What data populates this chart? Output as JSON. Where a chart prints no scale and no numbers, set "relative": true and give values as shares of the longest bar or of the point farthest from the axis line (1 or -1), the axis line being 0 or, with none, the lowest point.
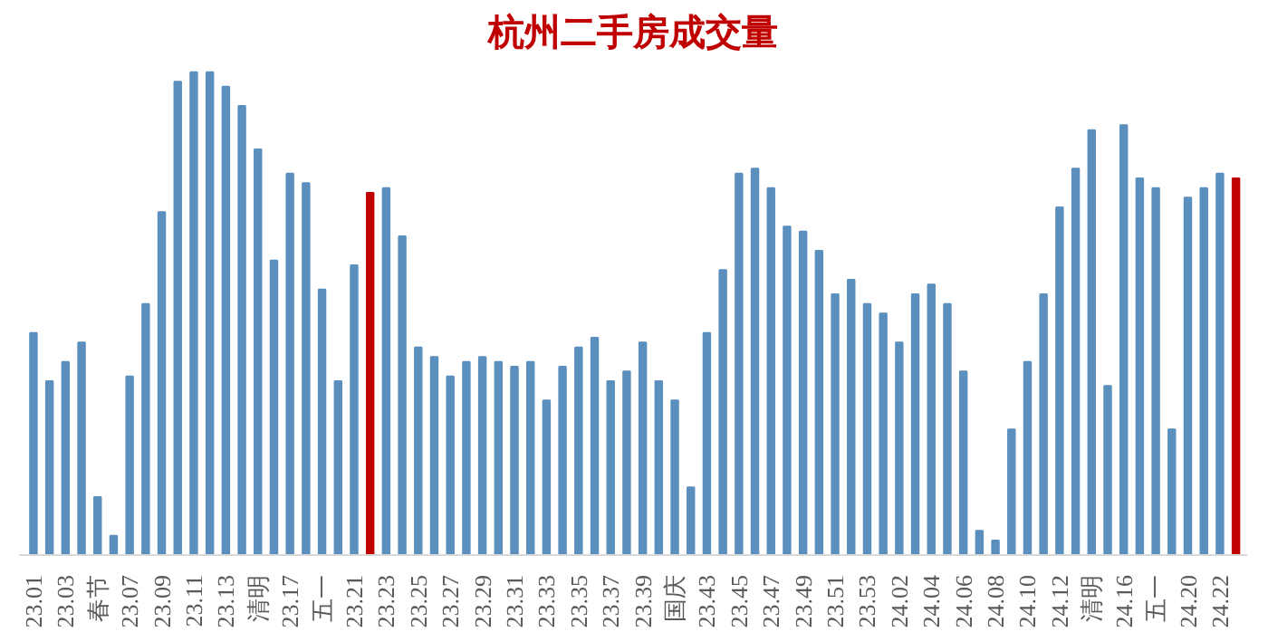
{
  "chart_data": {
    "type": "bar",
    "title": "杭州二手房成交量",
    "relative": true,
    "categories": [
      "23.01",
      null,
      "23.03",
      null,
      "春节",
      null,
      "23.07",
      null,
      "23.09",
      null,
      "23.11",
      null,
      "23.13",
      null,
      "清明",
      null,
      "23.17",
      null,
      "五一",
      null,
      "23.21",
      null,
      "23.23",
      null,
      "23.25",
      null,
      "23.27",
      null,
      "23.29",
      null,
      "23.31",
      null,
      "23.33",
      null,
      "23.35",
      null,
      "23.37",
      null,
      "23.39",
      null,
      "国庆",
      null,
      "23.43",
      null,
      "23.45",
      null,
      "23.47",
      null,
      "23.49",
      null,
      "23.51",
      null,
      "23.53",
      null,
      "24.02",
      null,
      "24.04",
      null,
      "24.06",
      null,
      "24.08",
      null,
      "24.10",
      null,
      "24.12",
      null,
      "清明",
      null,
      "24.16",
      null,
      "五一",
      null,
      "24.20",
      null,
      "24.22",
      null
    ],
    "values": [
      0.46,
      0.36,
      0.4,
      0.44,
      0.12,
      0.04,
      0.37,
      0.52,
      0.71,
      0.98,
      1,
      1,
      0.97,
      0.93,
      0.84,
      0.61,
      0.79,
      0.77,
      0.55,
      0.36,
      0.6,
      0.75,
      0.76,
      0.66,
      0.43,
      0.41,
      0.37,
      0.4,
      0.41,
      0.4,
      0.39,
      0.4,
      0.32,
      0.39,
      0.43,
      0.45,
      0.36,
      0.38,
      0.44,
      0.36,
      0.32,
      0.14,
      0.46,
      0.59,
      0.79,
      0.8,
      0.76,
      0.68,
      0.67,
      0.63,
      0.54,
      0.57,
      0.52,
      0.5,
      0.44,
      0.54,
      0.56,
      0.52,
      0.38,
      0.05,
      0.03,
      0.26,
      0.4,
      0.54,
      0.72,
      0.8,
      0.88,
      0.35,
      0.89,
      0.78,
      0.76,
      0.26,
      0.74,
      0.76,
      0.79,
      0.78
    ],
    "colors": [
      "#5b8fbd",
      "#5b8fbd",
      "#5b8fbd",
      "#5b8fbd",
      "#5b8fbd",
      "#5b8fbd",
      "#5b8fbd",
      "#5b8fbd",
      "#5b8fbd",
      "#5b8fbd",
      "#5b8fbd",
      "#5b8fbd",
      "#5b8fbd",
      "#5b8fbd",
      "#5b8fbd",
      "#5b8fbd",
      "#5b8fbd",
      "#5b8fbd",
      "#5b8fbd",
      "#5b8fbd",
      "#5b8fbd",
      "#c00000",
      "#5b8fbd",
      "#5b8fbd",
      "#5b8fbd",
      "#5b8fbd",
      "#5b8fbd",
      "#5b8fbd",
      "#5b8fbd",
      "#5b8fbd",
      "#5b8fbd",
      "#5b8fbd",
      "#5b8fbd",
      "#5b8fbd",
      "#5b8fbd",
      "#5b8fbd",
      "#5b8fbd",
      "#5b8fbd",
      "#5b8fbd",
      "#5b8fbd",
      "#5b8fbd",
      "#5b8fbd",
      "#5b8fbd",
      "#5b8fbd",
      "#5b8fbd",
      "#5b8fbd",
      "#5b8fbd",
      "#5b8fbd",
      "#5b8fbd",
      "#5b8fbd",
      "#5b8fbd",
      "#5b8fbd",
      "#5b8fbd",
      "#5b8fbd",
      "#5b8fbd",
      "#5b8fbd",
      "#5b8fbd",
      "#5b8fbd",
      "#5b8fbd",
      "#5b8fbd",
      "#5b8fbd",
      "#5b8fbd",
      "#5b8fbd",
      "#5b8fbd",
      "#5b8fbd",
      "#5b8fbd",
      "#5b8fbd",
      "#5b8fbd",
      "#5b8fbd",
      "#5b8fbd",
      "#5b8fbd",
      "#5b8fbd",
      "#5b8fbd",
      "#5b8fbd",
      "#5b8fbd",
      "#c00000"
    ],
    "grid": false
  }
}
